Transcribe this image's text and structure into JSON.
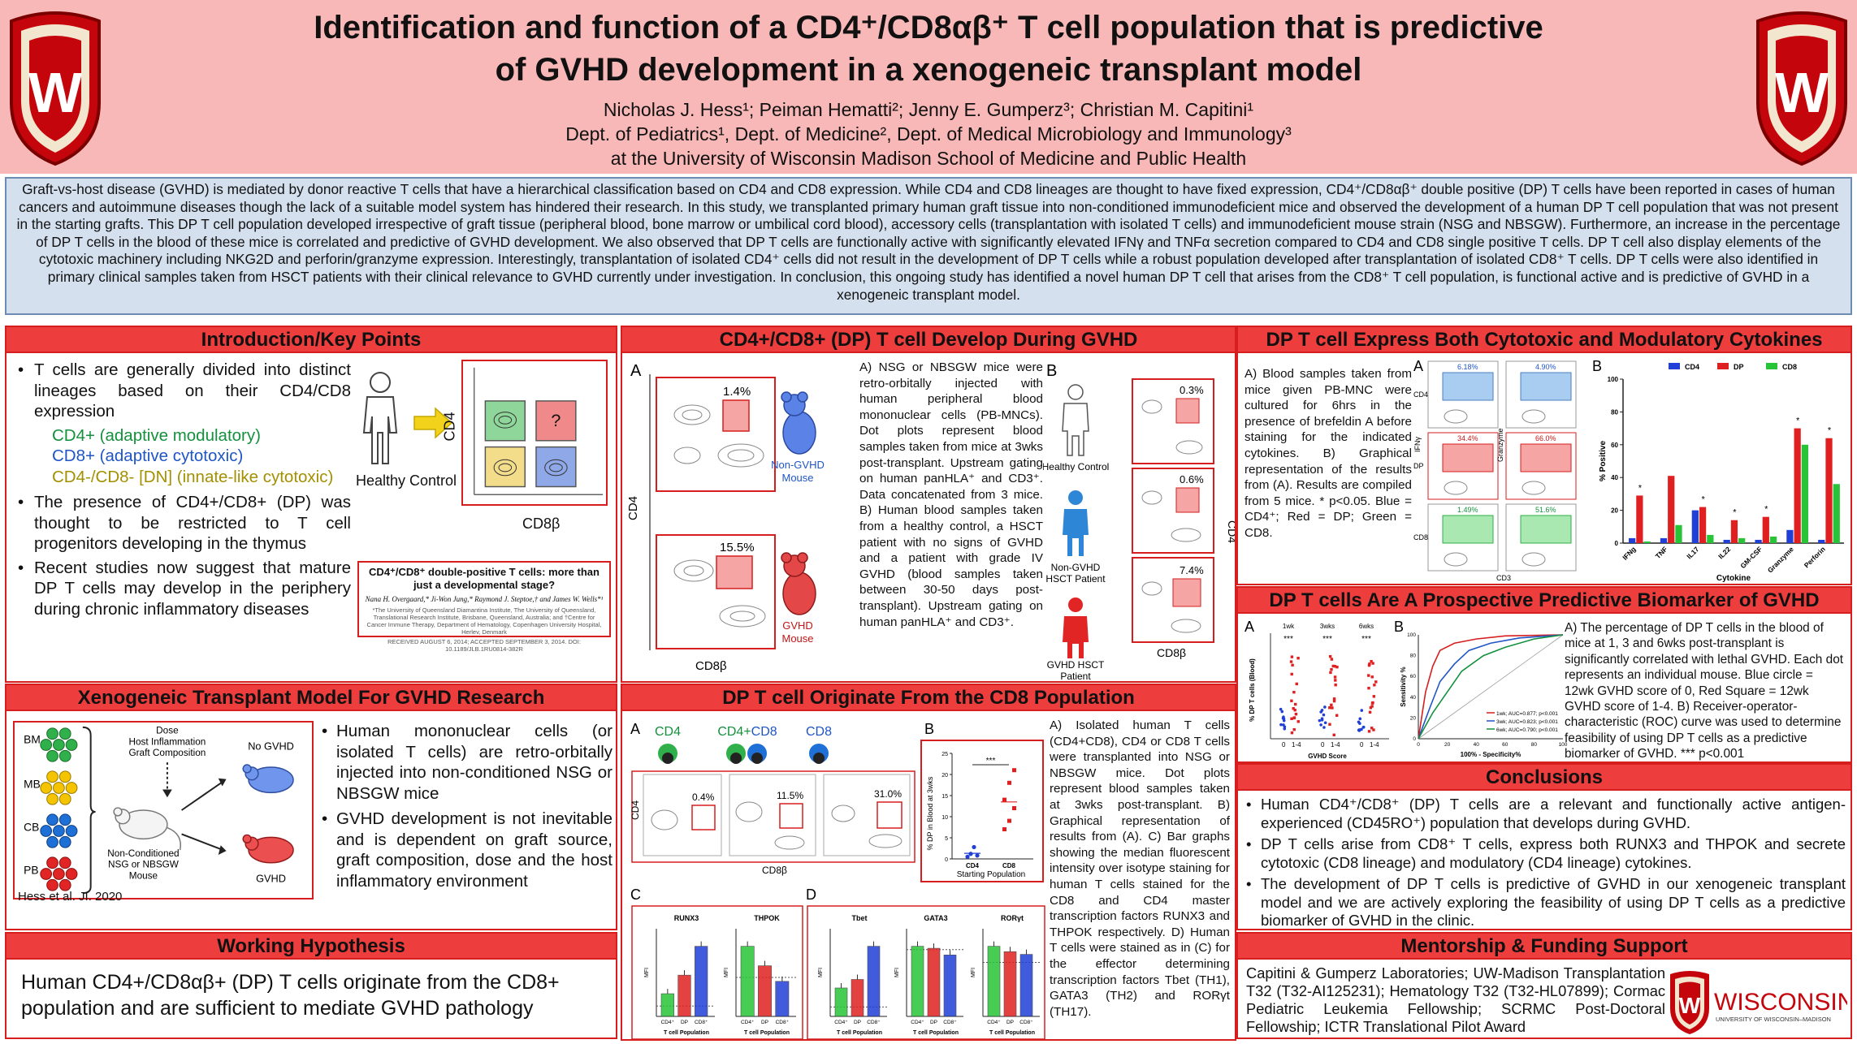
{
  "header": {
    "title_line1": "Identification and function of a CD4⁺/CD8αβ⁺ T cell population that is predictive",
    "title_line2": "of GVHD development in a xenogeneic transplant model",
    "authors": "Nicholas J. Hess¹; Peiman Hematti²; Jenny E. Gumperz³; Christian M. Capitini¹",
    "departments": "Dept. of Pediatrics¹, Dept. of Medicine², Dept. of Medical Microbiology and Immunology³",
    "institution": "at the University of Wisconsin Madison School of Medicine and Public Health"
  },
  "abstract": "Graft-vs-host disease (GVHD) is mediated by donor reactive T cells that have a hierarchical classification based on CD4 and CD8 expression. While CD4 and CD8 lineages are thought to have fixed expression, CD4⁺/CD8αβ⁺ double positive (DP) T cells have been reported in cases of human cancers and autoimmune diseases though the lack of a suitable model system has hindered their research. In this study, we transplanted primary human graft tissue into non-conditioned immunodeficient mice and observed the development of a human DP T cell population that was not present in the starting grafts. This DP T cell population developed irrespective of graft tissue (peripheral blood, bone marrow or umbilical cord blood), accessory cells (transplantation with isolated T cells) and immunodeficient mouse strain (NSG and NBSGW). Furthermore, an increase in the percentage of DP T cells in the blood of these mice is correlated and predictive of GVHD development. We also observed that DP T cells are functionally active with significantly elevated IFNγ and TNFα secretion compared to CD4 and CD8 single positive T cells. DP T cell also display elements of the cytotoxic machinery including NKG2D and perforin/granzyme expression. Interestingly, transplantation of isolated CD4⁺ cells did not result in the development of DP T cells while a robust population developed after transplantation of isolated CD8⁺ T cells. DP T cells were also identified in primary clinical samples taken from HSCT patients with their clinical relevance to GVHD currently under investigation. In conclusion, this ongoing study has identified a novel human DP T cell that arises from the CD8⁺ T cell population, is functional active and is predictive of GVHD in a xenogeneic transplant model.",
  "intro": {
    "title": "Introduction/Key Points",
    "bullet1": "T cells are generally divided into distinct lineages based on their CD4/CD8 expression",
    "sub_cd4": "CD4+ (adaptive modulatory)",
    "sub_cd8": "CD8+ (adaptive cytotoxic)",
    "sub_dn": "CD4-/CD8- [DN] (innate-like cytotoxic)",
    "bullet2": "The presence of CD4+/CD8+ (DP) was thought to be restricted to T cell progenitors developing in the thymus",
    "bullet3": "Recent studies now suggest that mature DP T cells may develop in the periphery during chronic inflammatory diseases",
    "fig_label": "Healthy Control",
    "fig_xaxis": "CD8β",
    "fig_yaxis": "CD4",
    "fig_q": "?",
    "ref_title": "CD4⁺/CD8⁺ double-positive T cells: more than just a developmental stage?",
    "ref_authors": "Nana H. Overgaard,* Ji-Won Jung,* Raymond J. Steptoe,† and James W. Wells*¹",
    "ref_fine": "*The University of Queensland Diamantina Institute, The University of Queensland, Translational Research Institute, Brisbane, Queensland, Australia; and †Centre for Cancer Immune Therapy, Department of Hematology, Copenhagen University Hospital, Herlev, Denmark",
    "ref_date": "RECEIVED AUGUST 6, 2014; ACCEPTED SEPTEMBER 3, 2014. DOI: 10.1189/JLB.1RU0814-382R"
  },
  "xeno": {
    "title": "Xenogeneic Transplant Model For GVHD Research",
    "fig_bm": "BM",
    "fig_mb": "MB",
    "fig_cb": "CB",
    "fig_pb": "PB",
    "fig_dose": "Dose",
    "fig_host": "Host Inflammation",
    "fig_graft": "Graft Composition",
    "fig_no_gvhd": "No GVHD",
    "fig_gvhd": "GVHD",
    "fig_mouse1": "Non-Conditioned",
    "fig_mouse2": "NSG or NBSGW",
    "fig_mouse3": "Mouse",
    "cite": "Hess et al. JI. 2020",
    "bullet1": "Human mononuclear cells (or isolated T cells) are retro-orbitally injected into non-conditioned NSG or NBSGW mice",
    "bullet2": "GVHD development is not inevitable and is dependent on graft source, graft composition, dose and the host inflammatory environment"
  },
  "hypothesis": {
    "title": "Working Hypothesis",
    "text": "Human CD4+/CD8αβ+ (DP) T cells originate from the CD8+ population and are sufficient to mediate GVHD pathology"
  },
  "dpdev": {
    "title": "CD4+/CD8+ (DP) T cell Develop During GVHD",
    "label_a": "A",
    "label_b": "B",
    "pct_1": "1.4%",
    "pct_2": "15.5%",
    "mouse1_l1": "Non-GVHD",
    "mouse1_l2": "Mouse",
    "mouse2_l1": "GVHD",
    "mouse2_l2": "Mouse",
    "yaxis": "CD4",
    "xaxis": "CD8β",
    "text": "A) NSG or NBSGW mice were retro-orbitally injected with human peripheral blood mononuclear cells (PB-MNCs). Dot plots represent blood samples taken from mice at 3wks post-transplant. Upstream gating on human panHLA⁺ and CD3⁺. Data concatenated from 3 mice. B) Human blood samples taken from a healthy control, a HSCT patient with no signs of GVHD and a patient with grade IV GVHD (blood samples taken between 30-50 days post-transplant). Upstream gating on human panHLA⁺ and CD3⁺.",
    "b_label1": "Healthy Control",
    "b_label2_l1": "Non-GVHD",
    "b_label2_l2": "HSCT Patient",
    "b_label3_l1": "GVHD HSCT",
    "b_label3_l2": "Patient",
    "b_pct1": "0.3%",
    "b_pct2": "0.6%",
    "b_pct3": "7.4%",
    "b_yaxis": "CD4",
    "b_xaxis": "CD8β"
  },
  "dporig": {
    "title": "DP T cell Originate From the CD8 Population",
    "label_a": "A",
    "label_b": "B",
    "label_c": "C",
    "label_d": "D",
    "cell_cd4": "CD4",
    "cell_cd4cd8_a": "CD4+",
    "cell_cd4cd8_b": "CD8",
    "cell_cd8": "CD8",
    "pct1": "0.4%",
    "pct2": "11.5%",
    "pct3": "31.0%",
    "yaxis": "CD4",
    "xaxis": "CD8β",
    "b_ylabel": "% DP in Blood at 3wks",
    "b_xlabel": "Starting Population",
    "b_sig": "***",
    "b_cat1": "CD4",
    "b_cat2": "CD8",
    "c_runx3": "RUNX3",
    "c_thpok": "THPOK",
    "d_tbet": "Tbet",
    "d_gata3": "GATA3",
    "d_rorgt": "RORγt",
    "mfi": "MFI",
    "tcell_pop": "T cell Population",
    "cat_cd4": "CD4⁺",
    "cat_dp": "DP",
    "cat_cd8": "CD8⁺",
    "text": "A) Isolated human T cells (CD4+CD8), CD4 or CD8 T cells were transplanted into NSG or NBSGW mice. Dot plots represent blood samples taken at 3wks post-transplant. B) Graphical representation of results from (A). C) Bar graphs showing the median fluorescent intensity over isotype staining for human T cells stained for the CD8 and CD4 master transcription factors RUNX3 and THPOK respectively. D) Human T cells were stained as in (C) for the effector determining transcription factors Tbet (TH1), GATA3 (TH2) and RORγt (TH17)."
  },
  "cyto": {
    "title": "DP T cell Express Both Cytotoxic and Modulatory Cytokines",
    "text": "A) Blood samples taken from mice given PB-MNC were cultured for 6hrs in the presence of brefeldin A before staining for the indicated cytokines. B) Graphical representation of the results from (A). Results are compiled from 5 mice. * p<0.05. Blue = CD4⁺; Red = DP; Green = CD8.",
    "label_a": "A",
    "label_b": "B",
    "a_pct_cd4_ifng": "6.18%",
    "a_pct_cd4_gzm": "4.90%",
    "a_pct_dp_ifng": "34.4%",
    "a_pct_dp_gzm": "66.0%",
    "a_pct_cd8_ifng": "1.49%",
    "a_pct_cd8_gzm": "51.6%",
    "a_row_cd4": "CD4",
    "a_row_dp": "DP",
    "a_row_cd8": "CD8",
    "a_ifng": "IFNγ",
    "a_gzm": "Granzyme",
    "a_cd3": "CD3"
  },
  "bio": {
    "title": "DP T cells Are A Prospective Predictive Biomarker of GVHD",
    "label_a": "A",
    "label_b": "B",
    "a_wk1": "1wk",
    "a_wk3": "3wks",
    "a_wk6": "6wks",
    "a_sig": "***",
    "a_ylabel": "% DP T cells (Blood)",
    "a_xlabel": "GVHD Score",
    "a_cat0": "0",
    "a_cat14": "1-4",
    "b_ylabel": "Sensitivity %",
    "b_xlabel": "100% - Specificity%",
    "b_leg1": "1wk; AUC=0.877; p<0.001",
    "b_leg2": "3wk; AUC=0.823; p<0.001",
    "b_leg3": "6wk; AUC=0.790; p<0.001",
    "text": "A) The percentage of DP T cells in the blood of mice at 1, 3 and 6wks post-transplant is significantly correlated with lethal GVHD. Each dot represents an individual mouse. Blue circle = 12wk GVHD score of 0, Red Square = 12wk GVHD score of 1-4. B) Receiver-operator-characteristic (ROC) curve was used to determine feasibility of using DP T cells as a predictive biomarker of GVHD. *** p<0.001"
  },
  "concl": {
    "title": "Conclusions",
    "b1": "Human CD4⁺/CD8⁺ (DP) T cells are a relevant and functionally active antigen-experienced (CD45RO⁺) population that develops during GVHD.",
    "b2": "DP T cells arise from CD8⁺ T cells, express both RUNX3 and THPOK and secrete cytotoxic (CD8 lineage) and modulatory (CD4 lineage) cytokines.",
    "b3": "The development of DP T cells is predictive of GVHD in our xenogeneic transplant model and we are actively exploring the feasibility of using DP T cells as a predictive biomarker of GVHD in the clinic."
  },
  "fund": {
    "title": "Mentorship & Funding Support",
    "text": "Capitini & Gumperz Laboratories; UW-Madison Transplantation T32 (T32-AI125231); Hematology T32 (T32-HL07899); Cormac Pediatric Leukemia Fellowship; SCRMC Post-Doctoral Fellowship; ICTR Translational Pilot Award",
    "logo_word": "WISCONSIN",
    "logo_sub": "UNIVERSITY OF WISCONSIN–MADISON"
  },
  "crest_letter": "W",
  "colors": {
    "header_bg": "#f9b8b8",
    "panel_border": "#d71e1e",
    "panel_head": "#ee3d3d",
    "abstract_bg": "#d4e0ee",
    "cd4_blue": "#1f3fd6",
    "dp_red": "#e02020",
    "cd8_green": "#27c437"
  },
  "chart_data": [
    {
      "type": "bar",
      "ylabel": "% Positive",
      "xlabel": "Cytokine",
      "ylim": [
        0,
        100
      ],
      "categories": [
        "IFNg",
        "TNF",
        "IL17",
        "IL22",
        "GM-CSF",
        "Granzyme",
        "Perforin"
      ],
      "series": [
        {
          "name": "CD4",
          "color": "#1f3fd6",
          "values": [
            3,
            3,
            20,
            2,
            2,
            8,
            2
          ]
        },
        {
          "name": "DP",
          "color": "#e02020",
          "values": [
            29,
            41,
            22,
            14,
            16,
            70,
            64
          ]
        },
        {
          "name": "CD8",
          "color": "#27c437",
          "values": [
            1,
            11,
            5,
            3,
            4,
            60,
            36
          ]
        }
      ],
      "significance": [
        "*",
        "",
        "*",
        "*",
        "*",
        "*",
        "*"
      ],
      "ticks": [
        0,
        20,
        40,
        60,
        80,
        100
      ],
      "legend": "top"
    },
    {
      "type": "scatter",
      "ylabel": "% DP in Blood at 3wks",
      "xlabel": "Starting Population",
      "categories": [
        "CD4",
        "CD8"
      ],
      "ylim": [
        0,
        25
      ],
      "ticks": [
        0,
        5,
        10,
        15,
        20,
        25
      ],
      "series": [
        {
          "name": "CD4",
          "values": [
            0.5,
            1.2,
            2.8,
            0.8
          ]
        },
        {
          "name": "CD8",
          "values": [
            7,
            9,
            12,
            14,
            18,
            21
          ]
        }
      ]
    },
    {
      "type": "bar",
      "categories": [
        "CD4⁺",
        "DP",
        "CD8⁺"
      ],
      "series": [
        {
          "name": "RUNX3",
          "values": [
            2.2,
            4.0,
            6.8
          ]
        },
        {
          "name": "THPOK",
          "values": [
            1.8,
            1.3,
            0.9
          ]
        },
        {
          "name": "Tbet",
          "values": [
            3.0,
            3.9,
            7.4
          ]
        },
        {
          "name": "GATA3",
          "values": [
            1.05,
            1.02,
            0.92
          ]
        },
        {
          "name": "RORγt",
          "values": [
            1.3,
            1.2,
            1.15
          ]
        }
      ]
    },
    {
      "type": "line",
      "xlabel": "100% - Specificity%",
      "ylabel": "Sensitivity %",
      "xlim": [
        0,
        100
      ],
      "ylim": [
        0,
        100
      ],
      "series": [
        {
          "name": "1wk; AUC=0.877; p<0.001",
          "x": [
            0,
            5,
            10,
            15,
            25,
            40,
            60,
            100
          ],
          "y": [
            0,
            45,
            70,
            85,
            92,
            96,
            99,
            100
          ]
        },
        {
          "name": "3wk; AUC=0.823; p<0.001",
          "x": [
            0,
            8,
            15,
            25,
            35,
            50,
            70,
            100
          ],
          "y": [
            0,
            30,
            55,
            72,
            85,
            92,
            97,
            100
          ]
        },
        {
          "name": "6wk; AUC=0.790; p<0.001",
          "x": [
            0,
            10,
            20,
            30,
            45,
            60,
            80,
            100
          ],
          "y": [
            0,
            25,
            45,
            65,
            80,
            88,
            96,
            100
          ]
        }
      ]
    }
  ]
}
